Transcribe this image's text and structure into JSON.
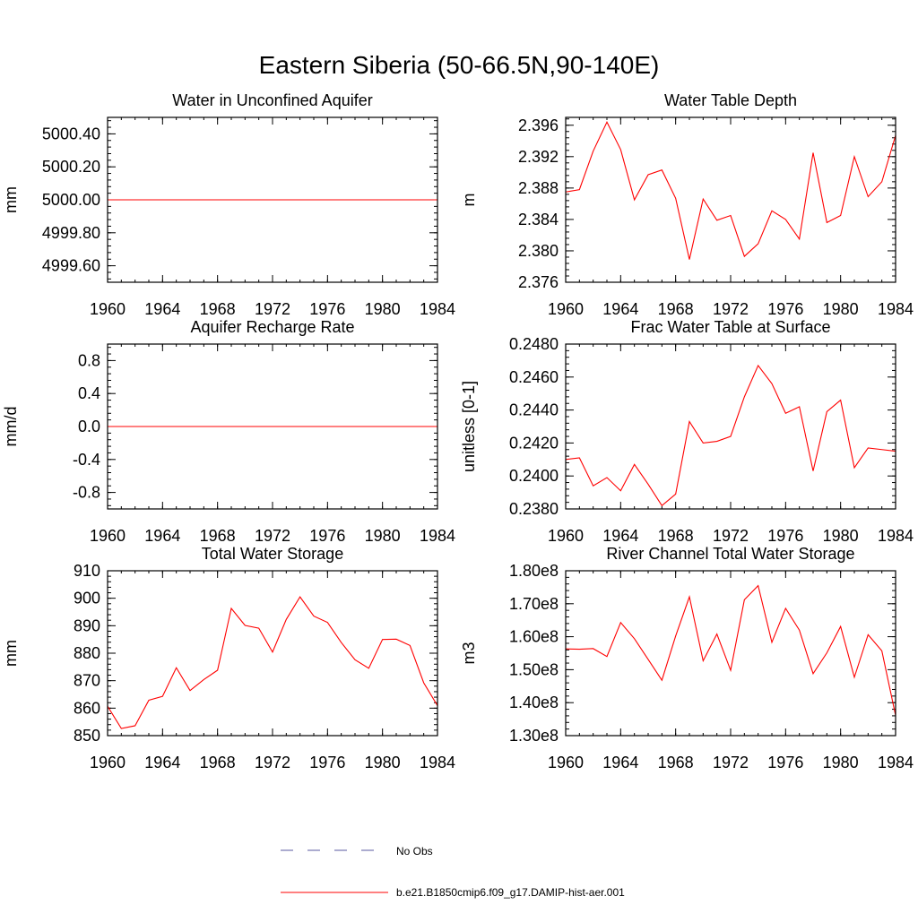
{
  "title": "Eastern Siberia (50-66.5N,90-140E)",
  "legend": {
    "placement": "bottom-center",
    "entries": [
      {
        "label": "No Obs",
        "style": "dashed",
        "color": "#5a5aa0"
      },
      {
        "label": "b.e21.B1850cmip6.f09_g17.DAMIP-hist-aer.001",
        "style": "solid",
        "color": "#ff0000"
      }
    ]
  },
  "chart_data": [
    {
      "type": "line",
      "title": "Water in Unconfined Aquifer",
      "ylabel": "mm",
      "xlim": [
        1960,
        1984
      ],
      "ylim": [
        4999.5,
        5000.5
      ],
      "xticks": [
        1960,
        1964,
        1968,
        1972,
        1976,
        1980,
        1984
      ],
      "xtick_labels": [
        "1960",
        "1964",
        "1968",
        "1972",
        "1976",
        "1980",
        "1984"
      ],
      "yticks": [
        4999.6,
        4999.8,
        5000.0,
        5000.2,
        5000.4
      ],
      "ytick_labels": [
        "4999.60",
        "4999.80",
        "5000.00",
        "5000.20",
        "5000.40"
      ],
      "x": [
        1960,
        1961,
        1962,
        1963,
        1964,
        1965,
        1966,
        1967,
        1968,
        1969,
        1970,
        1971,
        1972,
        1973,
        1974,
        1975,
        1976,
        1977,
        1978,
        1979,
        1980,
        1981,
        1982,
        1983,
        1984
      ],
      "series": [
        {
          "color": "#ff0000",
          "values": [
            5000,
            5000,
            5000,
            5000,
            5000,
            5000,
            5000,
            5000,
            5000,
            5000,
            5000,
            5000,
            5000,
            5000,
            5000,
            5000,
            5000,
            5000,
            5000,
            5000,
            5000,
            5000,
            5000,
            5000,
            5000
          ]
        }
      ]
    },
    {
      "type": "line",
      "title": "Water Table Depth",
      "ylabel": "m",
      "xlim": [
        1960,
        1984
      ],
      "ylim": [
        2.376,
        2.397
      ],
      "xticks": [
        1960,
        1964,
        1968,
        1972,
        1976,
        1980,
        1984
      ],
      "xtick_labels": [
        "1960",
        "1964",
        "1968",
        "1972",
        "1976",
        "1980",
        "1984"
      ],
      "yticks": [
        2.376,
        2.38,
        2.384,
        2.388,
        2.392,
        2.396
      ],
      "ytick_labels": [
        "2.376",
        "2.380",
        "2.384",
        "2.388",
        "2.392",
        "2.396"
      ],
      "x": [
        1960,
        1961,
        1962,
        1963,
        1964,
        1965,
        1966,
        1967,
        1968,
        1969,
        1970,
        1971,
        1972,
        1973,
        1974,
        1975,
        1976,
        1977,
        1978,
        1979,
        1980,
        1981,
        1982,
        1983,
        1984
      ],
      "series": [
        {
          "color": "#ff0000",
          "values": [
            2.3875,
            2.3878,
            2.3927,
            2.3964,
            2.3929,
            2.3865,
            2.3897,
            2.3903,
            2.3867,
            2.3789,
            2.3866,
            2.3839,
            2.3845,
            2.3793,
            2.3809,
            2.3851,
            2.384,
            2.3815,
            2.3925,
            2.3836,
            2.3845,
            2.392,
            2.3869,
            2.3888,
            2.3947
          ]
        }
      ]
    },
    {
      "type": "line",
      "title": "Aquifer Recharge Rate",
      "ylabel": "mm/d",
      "xlim": [
        1960,
        1984
      ],
      "ylim": [
        -1.0,
        1.0
      ],
      "xticks": [
        1960,
        1964,
        1968,
        1972,
        1976,
        1980,
        1984
      ],
      "xtick_labels": [
        "1960",
        "1964",
        "1968",
        "1972",
        "1976",
        "1980",
        "1984"
      ],
      "yticks": [
        -0.8,
        -0.4,
        0.0,
        0.4,
        0.8
      ],
      "ytick_labels": [
        "-0.8",
        "-0.4",
        "0.0",
        "0.4",
        "0.8"
      ],
      "x": [
        1960,
        1961,
        1962,
        1963,
        1964,
        1965,
        1966,
        1967,
        1968,
        1969,
        1970,
        1971,
        1972,
        1973,
        1974,
        1975,
        1976,
        1977,
        1978,
        1979,
        1980,
        1981,
        1982,
        1983,
        1984
      ],
      "series": [
        {
          "color": "#ff0000",
          "values": [
            0,
            0,
            0,
            0,
            0,
            0,
            0,
            0,
            0,
            0,
            0,
            0,
            0,
            0,
            0,
            0,
            0,
            0,
            0,
            0,
            0,
            0,
            0,
            0,
            0
          ]
        }
      ]
    },
    {
      "type": "line",
      "title": "Frac Water Table at Surface",
      "ylabel": "unitless [0-1]",
      "xlim": [
        1960,
        1984
      ],
      "ylim": [
        0.238,
        0.248
      ],
      "xticks": [
        1960,
        1964,
        1968,
        1972,
        1976,
        1980,
        1984
      ],
      "xtick_labels": [
        "1960",
        "1964",
        "1968",
        "1972",
        "1976",
        "1980",
        "1984"
      ],
      "yticks": [
        0.238,
        0.24,
        0.242,
        0.244,
        0.246,
        0.248
      ],
      "ytick_labels": [
        "0.2380",
        "0.2400",
        "0.2420",
        "0.2440",
        "0.2460",
        "0.2480"
      ],
      "x": [
        1960,
        1961,
        1962,
        1963,
        1964,
        1965,
        1966,
        1967,
        1968,
        1969,
        1970,
        1971,
        1972,
        1973,
        1974,
        1975,
        1976,
        1977,
        1978,
        1979,
        1980,
        1981,
        1982,
        1983,
        1984
      ],
      "series": [
        {
          "color": "#ff0000",
          "values": [
            0.241,
            0.2411,
            0.2394,
            0.2399,
            0.2391,
            0.2407,
            0.2395,
            0.2382,
            0.2389,
            0.2433,
            0.242,
            0.2421,
            0.2424,
            0.2448,
            0.2467,
            0.2456,
            0.2438,
            0.2442,
            0.2403,
            0.2439,
            0.2446,
            0.2405,
            0.2417,
            0.2416,
            0.2415
          ]
        }
      ]
    },
    {
      "type": "line",
      "title": "Total Water Storage",
      "ylabel": "mm",
      "xlim": [
        1960,
        1984
      ],
      "ylim": [
        850,
        910
      ],
      "xticks": [
        1960,
        1964,
        1968,
        1972,
        1976,
        1980,
        1984
      ],
      "xtick_labels": [
        "1960",
        "1964",
        "1968",
        "1972",
        "1976",
        "1980",
        "1984"
      ],
      "yticks": [
        850,
        860,
        870,
        880,
        890,
        900,
        910
      ],
      "ytick_labels": [
        "850",
        "860",
        "870",
        "880",
        "890",
        "900",
        "910"
      ],
      "x": [
        1960,
        1961,
        1962,
        1963,
        1964,
        1965,
        1966,
        1967,
        1968,
        1969,
        1970,
        1971,
        1972,
        1973,
        1974,
        1975,
        1976,
        1977,
        1978,
        1979,
        1980,
        1981,
        1982,
        1983,
        1984
      ],
      "series": [
        {
          "color": "#ff0000",
          "values": [
            860.7,
            852.6,
            853.6,
            862.9,
            864.3,
            874.7,
            866.4,
            870.4,
            873.8,
            896.3,
            890.1,
            889.1,
            880.4,
            892.3,
            900.5,
            893.5,
            891.2,
            883.9,
            877.6,
            874.5,
            885.0,
            885.1,
            882.8,
            869.2,
            860.9
          ]
        }
      ]
    },
    {
      "type": "line",
      "title": "River Channel Total Water Storage",
      "ylabel": "m3",
      "xlim": [
        1960,
        1984
      ],
      "ylim": [
        130000000.0,
        180000000.0
      ],
      "xticks": [
        1960,
        1964,
        1968,
        1972,
        1976,
        1980,
        1984
      ],
      "xtick_labels": [
        "1960",
        "1964",
        "1968",
        "1972",
        "1976",
        "1980",
        "1984"
      ],
      "yticks": [
        130000000.0,
        140000000.0,
        150000000.0,
        160000000.0,
        170000000.0,
        180000000.0
      ],
      "ytick_labels": [
        "1.30e8",
        "1.40e8",
        "1.50e8",
        "1.60e8",
        "1.70e8",
        "1.80e8"
      ],
      "x": [
        1960,
        1961,
        1962,
        1963,
        1964,
        1965,
        1966,
        1967,
        1968,
        1969,
        1970,
        1971,
        1972,
        1973,
        1974,
        1975,
        1976,
        1977,
        1978,
        1979,
        1980,
        1981,
        1982,
        1983,
        1984
      ],
      "series": [
        {
          "color": "#ff0000",
          "values": [
            156300000.0,
            156200000.0,
            156400000.0,
            154000000.0,
            164300000.0,
            159400000.0,
            153100000.0,
            146800000.0,
            160200000.0,
            172100000.0,
            152700000.0,
            160800000.0,
            149800000.0,
            171200000.0,
            175500000.0,
            158300000.0,
            168600000.0,
            162000000.0,
            148800000.0,
            155100000.0,
            163100000.0,
            147700000.0,
            160600000.0,
            155700000.0,
            136100000.0
          ]
        }
      ]
    }
  ]
}
